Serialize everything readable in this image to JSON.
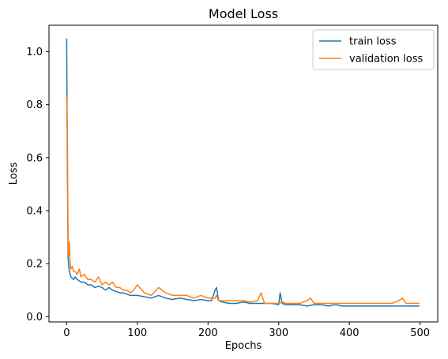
{
  "chart_data": {
    "type": "line",
    "title": "Model Loss",
    "xlabel": "Epochs",
    "ylabel": "Loss",
    "xlim": [
      -25,
      525
    ],
    "ylim": [
      -0.02,
      1.1
    ],
    "x_ticks": [
      0,
      100,
      200,
      300,
      400,
      500
    ],
    "y_ticks": [
      0.0,
      0.2,
      0.4,
      0.6,
      0.8,
      1.0
    ],
    "grid": false,
    "legend_position": "top-right",
    "series": [
      {
        "name": "train loss",
        "color": "#1f77b4",
        "x": [
          0,
          1,
          2,
          3,
          4,
          5,
          6,
          8,
          10,
          12,
          15,
          18,
          20,
          25,
          30,
          35,
          40,
          45,
          50,
          55,
          60,
          65,
          70,
          75,
          80,
          85,
          90,
          95,
          100,
          110,
          120,
          130,
          140,
          150,
          160,
          170,
          180,
          190,
          200,
          205,
          210,
          212,
          215,
          220,
          230,
          240,
          250,
          260,
          270,
          280,
          290,
          300,
          302,
          305,
          310,
          320,
          330,
          340,
          350,
          360,
          370,
          380,
          390,
          400,
          410,
          420,
          430,
          440,
          450,
          460,
          470,
          480,
          490,
          499
        ],
        "y": [
          1.05,
          0.55,
          0.22,
          0.19,
          0.17,
          0.16,
          0.15,
          0.145,
          0.14,
          0.15,
          0.14,
          0.135,
          0.13,
          0.13,
          0.12,
          0.12,
          0.11,
          0.115,
          0.11,
          0.1,
          0.11,
          0.1,
          0.095,
          0.09,
          0.09,
          0.085,
          0.08,
          0.08,
          0.08,
          0.075,
          0.07,
          0.08,
          0.07,
          0.065,
          0.07,
          0.065,
          0.06,
          0.065,
          0.06,
          0.06,
          0.1,
          0.11,
          0.06,
          0.055,
          0.05,
          0.05,
          0.055,
          0.05,
          0.05,
          0.05,
          0.05,
          0.045,
          0.09,
          0.05,
          0.045,
          0.045,
          0.045,
          0.04,
          0.045,
          0.045,
          0.04,
          0.045,
          0.04,
          0.04,
          0.04,
          0.04,
          0.04,
          0.04,
          0.04,
          0.04,
          0.04,
          0.04,
          0.04,
          0.04
        ]
      },
      {
        "name": "validation loss",
        "color": "#ff7f0e",
        "x": [
          0,
          1,
          2,
          3,
          4,
          5,
          6,
          8,
          10,
          12,
          15,
          18,
          20,
          25,
          30,
          35,
          40,
          45,
          50,
          55,
          60,
          65,
          70,
          75,
          80,
          85,
          90,
          95,
          100,
          110,
          120,
          130,
          140,
          150,
          160,
          170,
          180,
          190,
          200,
          205,
          210,
          212,
          215,
          220,
          230,
          240,
          250,
          260,
          270,
          275,
          280,
          290,
          300,
          305,
          310,
          320,
          330,
          340,
          345,
          350,
          360,
          370,
          380,
          390,
          400,
          410,
          420,
          430,
          440,
          450,
          460,
          470,
          475,
          480,
          490,
          499
        ],
        "y": [
          0.83,
          0.7,
          0.26,
          0.23,
          0.28,
          0.2,
          0.18,
          0.19,
          0.17,
          0.17,
          0.16,
          0.18,
          0.15,
          0.16,
          0.14,
          0.14,
          0.13,
          0.15,
          0.12,
          0.13,
          0.12,
          0.13,
          0.11,
          0.11,
          0.1,
          0.1,
          0.09,
          0.1,
          0.12,
          0.09,
          0.08,
          0.11,
          0.09,
          0.08,
          0.08,
          0.08,
          0.07,
          0.08,
          0.07,
          0.07,
          0.07,
          0.08,
          0.06,
          0.06,
          0.06,
          0.06,
          0.06,
          0.055,
          0.06,
          0.09,
          0.05,
          0.05,
          0.05,
          0.055,
          0.05,
          0.05,
          0.05,
          0.06,
          0.07,
          0.05,
          0.05,
          0.05,
          0.05,
          0.05,
          0.05,
          0.05,
          0.05,
          0.05,
          0.05,
          0.05,
          0.05,
          0.06,
          0.07,
          0.05,
          0.05,
          0.05
        ]
      }
    ]
  }
}
